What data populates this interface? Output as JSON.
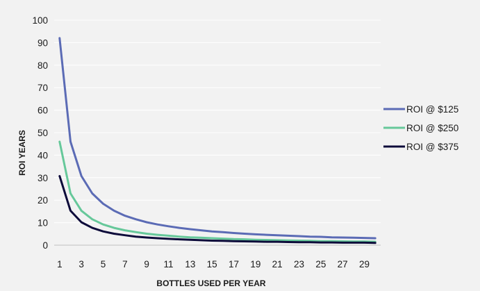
{
  "chart_data": {
    "type": "line",
    "title": "",
    "xlabel": "BOTTLES USED PER YEAR",
    "ylabel": "ROI YEARS",
    "x": [
      1,
      2,
      3,
      4,
      5,
      6,
      7,
      8,
      9,
      10,
      11,
      12,
      13,
      14,
      15,
      16,
      17,
      18,
      19,
      20,
      21,
      22,
      23,
      24,
      25,
      26,
      27,
      28,
      29,
      30
    ],
    "x_tick_labels": [
      "1",
      "3",
      "5",
      "7",
      "9",
      "11",
      "13",
      "15",
      "17",
      "19",
      "21",
      "23",
      "25",
      "27",
      "29"
    ],
    "y_tick_labels": [
      "0",
      "10",
      "20",
      "30",
      "40",
      "50",
      "60",
      "70",
      "80",
      "90",
      "100"
    ],
    "ylim": [
      0,
      100
    ],
    "grid": "horizontal",
    "legend_position": "right",
    "series": [
      {
        "name": "ROI @ $125",
        "color": "#5b6bb5",
        "values": [
          92,
          46,
          30.7,
          23,
          18.4,
          15.3,
          13.1,
          11.5,
          10.2,
          9.2,
          8.4,
          7.7,
          7.1,
          6.6,
          6.1,
          5.8,
          5.4,
          5.1,
          4.8,
          4.6,
          4.4,
          4.2,
          4.0,
          3.8,
          3.7,
          3.5,
          3.4,
          3.3,
          3.2,
          3.1
        ]
      },
      {
        "name": "ROI @ $250",
        "color": "#66c89a",
        "values": [
          46,
          23,
          15.3,
          11.5,
          9.2,
          7.7,
          6.6,
          5.8,
          5.1,
          4.6,
          4.2,
          3.8,
          3.5,
          3.3,
          3.1,
          2.9,
          2.7,
          2.6,
          2.4,
          2.3,
          2.2,
          2.1,
          2.0,
          1.9,
          1.8,
          1.8,
          1.7,
          1.6,
          1.6,
          1.5
        ]
      },
      {
        "name": "ROI @ $375",
        "color": "#0d0b3a",
        "values": [
          30.7,
          15.3,
          10.2,
          7.7,
          6.1,
          5.1,
          4.4,
          3.8,
          3.4,
          3.1,
          2.8,
          2.6,
          2.4,
          2.2,
          2.0,
          1.9,
          1.8,
          1.7,
          1.6,
          1.5,
          1.5,
          1.4,
          1.3,
          1.3,
          1.2,
          1.2,
          1.1,
          1.1,
          1.1,
          1.0
        ]
      }
    ]
  }
}
